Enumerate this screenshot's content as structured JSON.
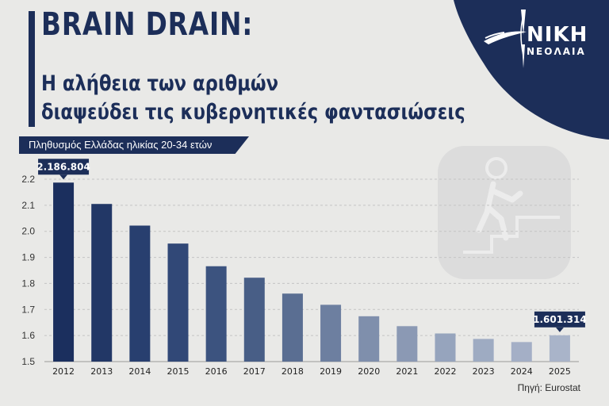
{
  "header": {
    "title": "BRAIN DRAIN:",
    "subtitle_line1": "Η αλήθεια των αριθμών",
    "subtitle_line2": "διαψεύδει τις κυβερνητικές φαντασιώσεις",
    "ribbon": "Πληθυσμός Ελλάδας ηλικίας 20-34 ετών"
  },
  "logo": {
    "name": "ΝΙΚΗ",
    "subtitle": "ΝΕΟΛΑΙΑ",
    "icon": "flame-logo-icon"
  },
  "decoration": {
    "icon": "person-climbing-stairs-icon"
  },
  "source": "Πηγή: Eurostat",
  "colors": {
    "navy": "#1c2e59",
    "background": "#e9e9e7",
    "bar_gradient": [
      "#1b2f5e",
      "#2c4474",
      "#4a6088",
      "#7d8daa",
      "#9ba8c0",
      "#a9b4c9"
    ]
  },
  "chart_data": {
    "type": "bar",
    "categories": [
      "2012",
      "2013",
      "2014",
      "2015",
      "2016",
      "2017",
      "2018",
      "2019",
      "2020",
      "2021",
      "2022",
      "2023",
      "2024",
      "2025"
    ],
    "values": [
      2.187,
      2.105,
      2.022,
      1.953,
      1.866,
      1.822,
      1.761,
      1.718,
      1.674,
      1.636,
      1.608,
      1.587,
      1.575,
      1.601
    ],
    "ylim": [
      1.5,
      2.2
    ],
    "yticks": [
      "1.5",
      "1.6",
      "1.7",
      "1.8",
      "1.9",
      "2.0",
      "2.1",
      "2.2"
    ],
    "grid": true,
    "legend": "none",
    "annotations": [
      {
        "category": "2012",
        "text": "2.186.804"
      },
      {
        "category": "2025",
        "text": "1.601.314"
      }
    ]
  }
}
